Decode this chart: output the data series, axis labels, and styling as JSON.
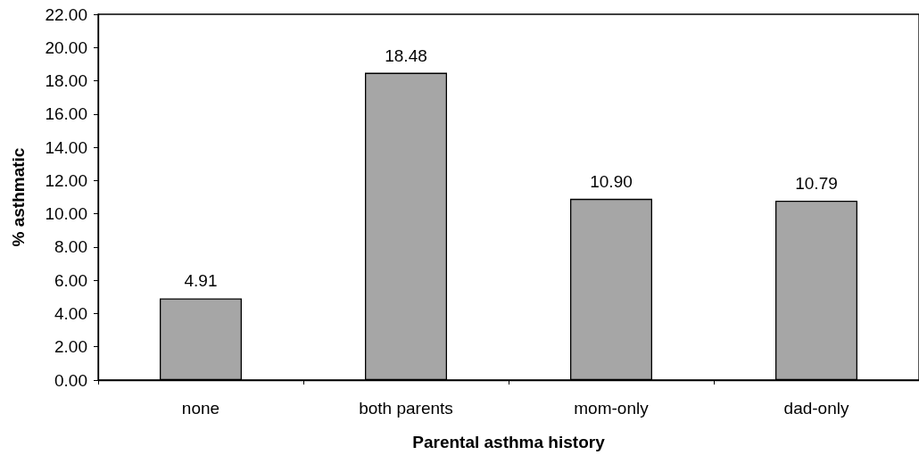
{
  "chart_data": {
    "type": "bar",
    "categories": [
      "none",
      "both parents",
      "mom-only",
      "dad-only"
    ],
    "values": [
      4.91,
      18.48,
      10.9,
      10.79
    ],
    "value_labels": [
      "4.91",
      "18.48",
      "10.90",
      "10.79"
    ],
    "color": "#a6a6a6",
    "xlabel": "Parental asthma history",
    "ylabel": "% asthmatic",
    "ylim": [
      0,
      22
    ],
    "yticks": [
      {
        "value": 0,
        "label": "0.00"
      },
      {
        "value": 2,
        "label": "2.00"
      },
      {
        "value": 4,
        "label": "4.00"
      },
      {
        "value": 6,
        "label": "6.00"
      },
      {
        "value": 8,
        "label": "8.00"
      },
      {
        "value": 10,
        "label": "10.00"
      },
      {
        "value": 12,
        "label": "12.00"
      },
      {
        "value": 14,
        "label": "14.00"
      },
      {
        "value": 16,
        "label": "16.00"
      },
      {
        "value": 18,
        "label": "18.00"
      },
      {
        "value": 20,
        "label": "20.00"
      },
      {
        "value": 22,
        "label": "22.00"
      }
    ],
    "grid": false
  }
}
